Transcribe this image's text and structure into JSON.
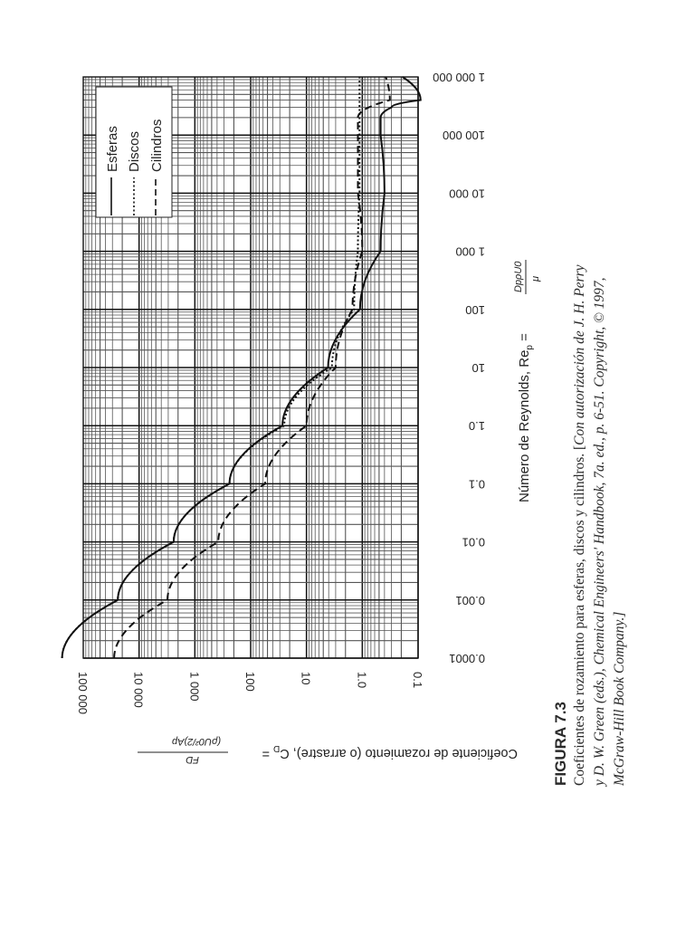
{
  "figure": {
    "label": "FIGURA 7.3",
    "caption_lines": [
      "Coeficientes de rozamiento para esferas, discos y cilindros. [Con autorización de J. H. Perry",
      "y D. W. Green (eds.), Chemical Engineers' Handbook, 7a. ed., p. 6-51. Copyright, © 1997,",
      "McGraw-Hill Book Company.]"
    ],
    "caption_plain": "Coeficientes de rozamiento para esferas, discos y cilindros. [",
    "caption_italic_1": "Con autorización de J. H. Perry",
    "caption_italic_2": "y D. W. Green (eds.), Chemical Engineers' Handbook, 7a. ed., p. 6-51. Copyright, © 1997,",
    "caption_italic_3": "McGraw-Hill Book Company.]"
  },
  "axes": {
    "x_label": "Número de Reynolds, Re",
    "x_label_sub": "p",
    "x_label_formula_num": "DpρU0",
    "x_label_formula_den": "μ",
    "y_label": "Coeficiente de rozamiento (o arrastre), C",
    "y_label_sub": "D",
    "y_label_formula_num": "FD",
    "y_label_formula_den": "(ρU0²/2)Ap",
    "x_ticks": [
      "0.0001",
      "0.001",
      "0.01",
      "0.1",
      "1.0",
      "10",
      "100",
      "1 000",
      "10 000",
      "100 000",
      "1 000 000"
    ],
    "y_ticks": [
      "100 000",
      "10 000",
      "1 000",
      "100",
      "10",
      "1.0",
      "0.1"
    ]
  },
  "legend": {
    "items": [
      {
        "label": "Esferas",
        "style": "solid"
      },
      {
        "label": "Discos",
        "style": "dotted"
      },
      {
        "label": "Cilindros",
        "style": "dashed"
      }
    ]
  },
  "chart_data": {
    "type": "line",
    "title": "FIGURA 7.3 Coeficientes de rozamiento para esferas, discos y cilindros",
    "xlabel": "Número de Reynolds, Re_p = D_p ρ u_0 / μ",
    "ylabel": "Coeficiente de rozamiento (o arrastre), C_D = F_D / ((ρ u_0²/2) A_p)",
    "xscale": "log",
    "yscale": "log",
    "xlim": [
      0.0001,
      1000000
    ],
    "ylim": [
      0.1,
      100000
    ],
    "grid": true,
    "legend_position": "upper-left (rotated figure)",
    "orientation_note": "Figure printed rotated 90°: Re axis runs vertically, C_D axis horizontally",
    "series": [
      {
        "name": "Esferas",
        "style": "solid",
        "x": [
          0.0001,
          0.001,
          0.01,
          0.1,
          1,
          10,
          100,
          1000,
          10000,
          100000,
          200000,
          300000,
          400000,
          1000000
        ],
        "y": [
          240000,
          24000,
          2400,
          240,
          27,
          4.1,
          1.1,
          0.47,
          0.4,
          0.47,
          0.47,
          0.3,
          0.09,
          0.19
        ]
      },
      {
        "name": "Discos",
        "style": "dotted",
        "x": [
          0.0001,
          0.001,
          0.01,
          0.1,
          1,
          10,
          100,
          1000,
          10000,
          100000,
          1000000
        ],
        "y": [
          240000,
          24000,
          2400,
          240,
          25,
          3.5,
          1.4,
          1.2,
          1.12,
          1.12,
          1.12
        ]
      },
      {
        "name": "Cilindros",
        "style": "dashed",
        "x": [
          0.0001,
          0.001,
          0.01,
          0.1,
          1,
          10,
          100,
          1000,
          10000,
          100000,
          200000,
          400000,
          1000000
        ],
        "y": [
          28000,
          3100,
          380,
          55,
          10,
          3.0,
          1.5,
          1.0,
          1.2,
          1.2,
          1.2,
          0.32,
          0.38
        ]
      }
    ]
  }
}
